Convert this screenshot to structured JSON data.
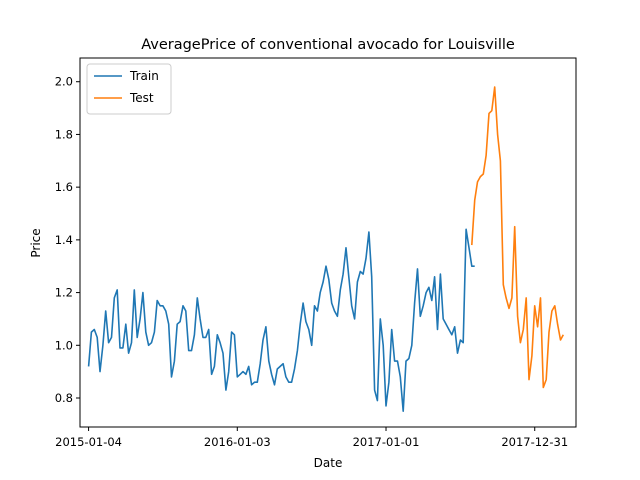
{
  "chart_data": {
    "type": "line",
    "title": "AveragePrice of conventional avocado for Louisville",
    "xlabel": "Date",
    "ylabel": "Price",
    "xlim": [
      "2014-12-14",
      "2018-04-11"
    ],
    "ylim": [
      0.69,
      2.09
    ],
    "x_ticks": [
      "2015-01-04",
      "2016-01-03",
      "2017-01-01",
      "2017-12-31"
    ],
    "y_ticks": [
      "0.8",
      "1.0",
      "1.2",
      "1.4",
      "1.6",
      "1.8",
      "2.0"
    ],
    "grid": false,
    "legend": "top-left",
    "series": [
      {
        "name": "Train",
        "color": "#1f77b4",
        "start": "2015-01-04",
        "step_days": 7,
        "values": [
          0.92,
          1.05,
          1.06,
          1.03,
          0.9,
          1.0,
          1.13,
          1.01,
          1.03,
          1.18,
          1.21,
          0.99,
          0.99,
          1.08,
          0.97,
          1.01,
          1.21,
          1.03,
          1.1,
          1.2,
          1.05,
          1.0,
          1.01,
          1.05,
          1.17,
          1.15,
          1.15,
          1.13,
          1.08,
          0.88,
          0.94,
          1.08,
          1.09,
          1.15,
          1.13,
          0.98,
          0.98,
          1.04,
          1.18,
          1.1,
          1.03,
          1.03,
          1.06,
          0.89,
          0.92,
          1.04,
          1.01,
          0.97,
          0.83,
          0.9,
          1.05,
          1.04,
          0.88,
          0.89,
          0.9,
          0.89,
          0.92,
          0.85,
          0.86,
          0.86,
          0.93,
          1.02,
          1.07,
          0.94,
          0.89,
          0.85,
          0.91,
          0.92,
          0.93,
          0.88,
          0.86,
          0.86,
          0.91,
          0.98,
          1.08,
          1.16,
          1.09,
          1.06,
          1.0,
          1.15,
          1.13,
          1.2,
          1.24,
          1.3,
          1.25,
          1.16,
          1.13,
          1.11,
          1.21,
          1.27,
          1.37,
          1.26,
          1.15,
          1.1,
          1.24,
          1.28,
          1.27,
          1.33,
          1.43,
          1.26,
          0.83,
          0.79,
          1.1,
          1.0,
          0.77,
          0.86,
          1.06,
          0.94,
          0.94,
          0.88,
          0.75,
          0.94,
          0.95,
          1.0,
          1.16,
          1.29,
          1.11,
          1.15,
          1.2,
          1.22,
          1.17,
          1.26,
          1.06,
          1.27,
          1.1,
          1.08,
          1.06,
          1.04,
          1.07,
          0.97,
          1.02,
          1.01,
          1.44,
          1.37,
          1.3,
          1.3
        ]
      },
      {
        "name": "Test",
        "color": "#ff7f0e",
        "start": "2017-07-30",
        "step_days": 7,
        "values": [
          1.38,
          1.55,
          1.62,
          1.64,
          1.65,
          1.72,
          1.88,
          1.89,
          1.98,
          1.8,
          1.7,
          1.23,
          1.18,
          1.14,
          1.18,
          1.45,
          1.11,
          1.01,
          1.06,
          1.18,
          0.87,
          0.96,
          1.15,
          1.07,
          1.18,
          0.84,
          0.87,
          1.05,
          1.13,
          1.15,
          1.08,
          1.02,
          1.04
        ]
      }
    ]
  }
}
